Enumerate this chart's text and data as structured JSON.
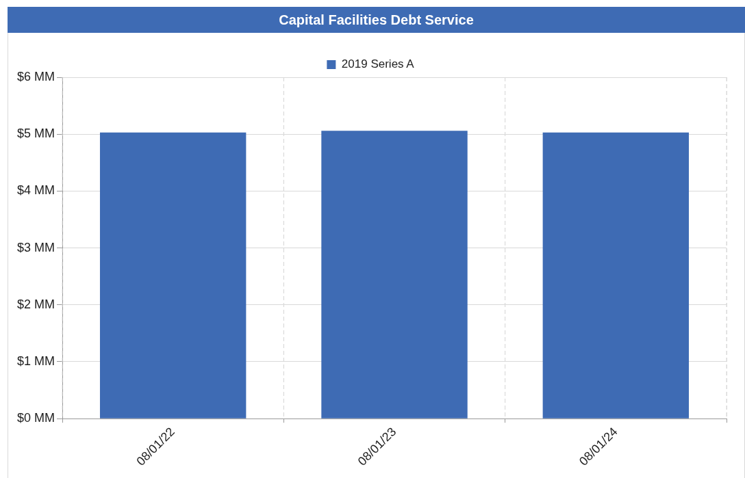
{
  "chart_data": {
    "type": "bar",
    "title": "Capital Facilities Debt Service",
    "categories": [
      "08/01/22",
      "08/01/23",
      "08/01/24"
    ],
    "series": [
      {
        "name": "2019 Series A",
        "color": "#3e6bb4",
        "values": [
          5.03,
          5.06,
          5.03
        ]
      }
    ],
    "ylim": [
      0,
      6
    ],
    "yticks": [
      {
        "value": 0,
        "label": "$0 MM"
      },
      {
        "value": 1,
        "label": "$1 MM"
      },
      {
        "value": 2,
        "label": "$2 MM"
      },
      {
        "value": 3,
        "label": "$3 MM"
      },
      {
        "value": 4,
        "label": "$4 MM"
      },
      {
        "value": 5,
        "label": "$5 MM"
      },
      {
        "value": 6,
        "label": "$6 MM"
      }
    ],
    "grid": true,
    "legend": "top"
  }
}
